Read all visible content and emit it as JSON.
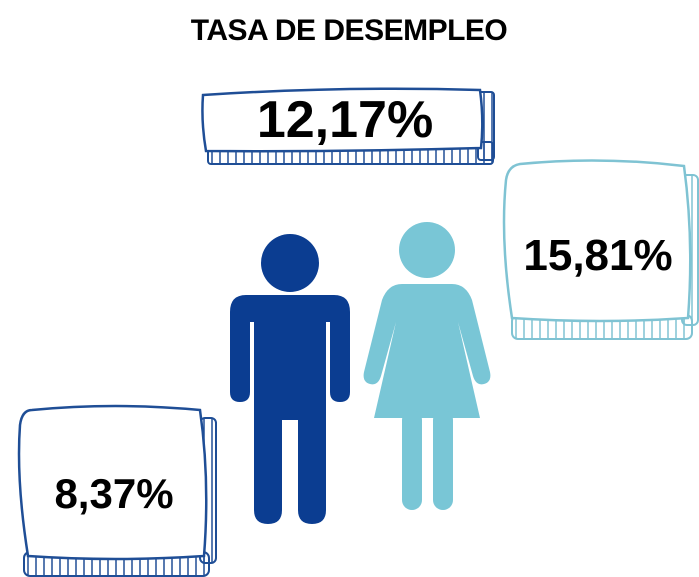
{
  "title": "TASA DE DESEMPLEO",
  "figures": [
    {
      "label": "12,17%"
    },
    {
      "label": "15,81%"
    },
    {
      "label": "8,37%"
    }
  ]
}
